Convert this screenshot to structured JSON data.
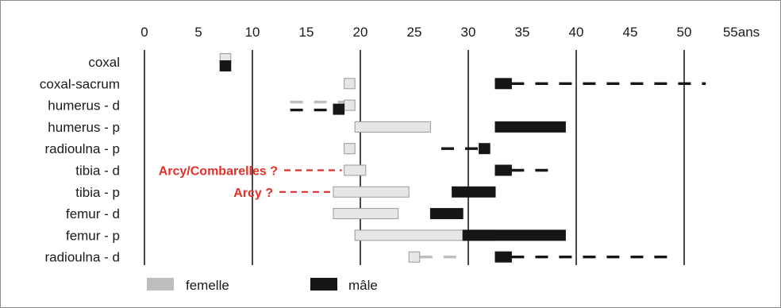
{
  "chart_data": {
    "type": "bar",
    "subtype": "horizontal-range",
    "x_tick_labels": [
      "0",
      "5",
      "10",
      "15",
      "20",
      "25",
      "30",
      "35",
      "40",
      "45",
      "50",
      "55ans"
    ],
    "x_ticks": [
      0,
      5,
      10,
      15,
      20,
      25,
      30,
      35,
      40,
      45,
      50,
      55
    ],
    "xlim": [
      0,
      55
    ],
    "gridlines_at": [
      0,
      10,
      20,
      30,
      40,
      50
    ],
    "categories": [
      "coxal",
      "coxal-sacrum",
      "humerus - d",
      "humerus - p",
      "radioulna - p",
      "tibia - d",
      "tibia - p",
      "femur - d",
      "femur - p",
      "radioulna - d"
    ],
    "series": [
      {
        "name": "femelle",
        "color": "#e6e6e6",
        "ranges": [
          {
            "category": "coxal",
            "start": 7,
            "end": 8
          },
          {
            "category": "coxal-sacrum",
            "start": 18.5,
            "end": 19.5
          },
          {
            "category": "humerus - d",
            "start": 18.5,
            "end": 19.5
          },
          {
            "category": "humerus - p",
            "start": 19.5,
            "end": 26.5
          },
          {
            "category": "radioulna - p",
            "start": 18.5,
            "end": 19.5
          },
          {
            "category": "tibia - d",
            "start": 18.5,
            "end": 20.5
          },
          {
            "category": "tibia - p",
            "start": 17.5,
            "end": 24.5
          },
          {
            "category": "femur - d",
            "start": 17.5,
            "end": 23.5
          },
          {
            "category": "femur - p",
            "start": 19.5,
            "end": 32.5
          },
          {
            "category": "radioulna - d",
            "start": 24.5,
            "end": 25.5
          }
        ],
        "uncertain_ranges": [
          {
            "category": "humerus - d",
            "start": 13.5,
            "end": 18.5
          },
          {
            "category": "radioulna - d",
            "start": 25.5,
            "end": 29.5
          }
        ]
      },
      {
        "name": "mâle",
        "color": "#161616",
        "ranges": [
          {
            "category": "coxal",
            "start": 7,
            "end": 8
          },
          {
            "category": "coxal-sacrum",
            "start": 32.5,
            "end": 34
          },
          {
            "category": "humerus - d",
            "start": 17.5,
            "end": 18.5
          },
          {
            "category": "humerus - p",
            "start": 32.5,
            "end": 39
          },
          {
            "category": "radioulna - p",
            "start": 31,
            "end": 32
          },
          {
            "category": "tibia - d",
            "start": 32.5,
            "end": 34
          },
          {
            "category": "tibia - p",
            "start": 28.5,
            "end": 32.5
          },
          {
            "category": "femur - d",
            "start": 26.5,
            "end": 29.5
          },
          {
            "category": "femur - p",
            "start": 29.5,
            "end": 39
          },
          {
            "category": "radioulna - d",
            "start": 32.5,
            "end": 34
          }
        ],
        "uncertain_ranges": [
          {
            "category": "coxal-sacrum",
            "start": 34,
            "end": 52
          },
          {
            "category": "humerus - d",
            "start": 13.5,
            "end": 17.5
          },
          {
            "category": "radioulna - p",
            "start": 27.5,
            "end": 31
          },
          {
            "category": "tibia - d",
            "start": 34,
            "end": 38
          },
          {
            "category": "radioulna - d",
            "start": 34,
            "end": 48.5
          }
        ]
      }
    ],
    "annotations": [
      {
        "text": "Arcy/Combarelles ?",
        "category": "tibia - d",
        "color": "#e0322a",
        "dashed_leader_to": 18.5
      },
      {
        "text": "Arcy ?",
        "category": "tibia - p",
        "color": "#e0322a",
        "dashed_leader_to": 17.5
      }
    ],
    "legend": {
      "position": "bottom-center",
      "entries": [
        {
          "label": "femelle",
          "color": "#bdbdbd"
        },
        {
          "label": "mâle",
          "color": "#161616"
        }
      ]
    },
    "grid": true,
    "title": "",
    "xlabel": "",
    "ylabel": ""
  }
}
